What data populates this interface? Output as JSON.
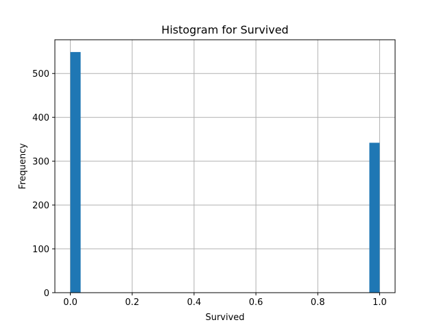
{
  "chart_data": {
    "type": "bar",
    "title": "Histogram for Survived",
    "xlabel": "Survived",
    "ylabel": "Frequency",
    "xlim": [
      -0.05,
      1.05
    ],
    "ylim": [
      0,
      577
    ],
    "xticks": [
      0.0,
      0.2,
      0.4,
      0.6,
      0.8,
      1.0
    ],
    "xtick_labels": [
      "0.0",
      "0.2",
      "0.4",
      "0.6",
      "0.8",
      "1.0"
    ],
    "yticks": [
      0,
      100,
      200,
      300,
      400,
      500
    ],
    "ytick_labels": [
      "0",
      "100",
      "200",
      "300",
      "400",
      "500"
    ],
    "bins": [
      {
        "x0": 0.0,
        "x1": 0.0333,
        "value": 549
      },
      {
        "x0": 0.9667,
        "x1": 1.0,
        "value": 342
      }
    ],
    "grid": true,
    "bar_color": "#1f77b4"
  }
}
